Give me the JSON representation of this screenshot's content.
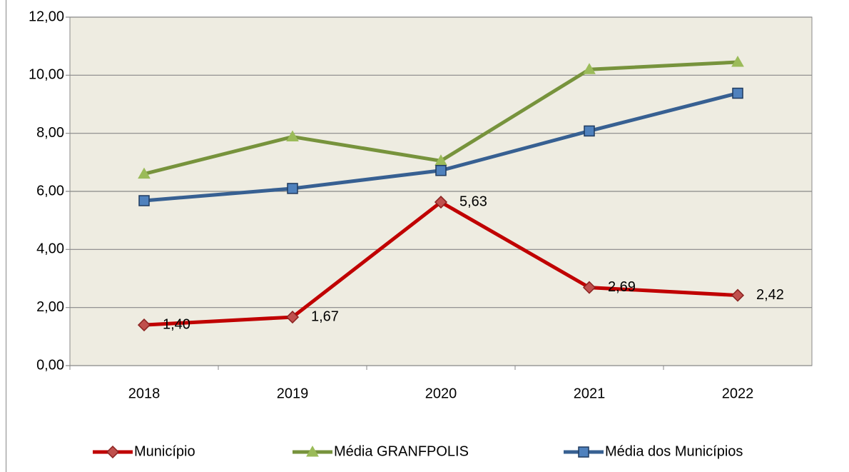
{
  "chart_data": {
    "type": "line",
    "categories": [
      "2018",
      "2019",
      "2020",
      "2021",
      "2022"
    ],
    "series": [
      {
        "name": "Município",
        "color": "#c00000",
        "marker": "diamond",
        "marker_color": "#c0504d",
        "values": [
          1.4,
          1.67,
          5.63,
          2.69,
          2.42
        ],
        "value_labels": [
          "1,40",
          "1,67",
          "5,63",
          "2,69",
          "2,42"
        ]
      },
      {
        "name": "Média GRANFPOLIS",
        "color": "#77933c",
        "marker": "triangle",
        "marker_color": "#9bbb59",
        "values": [
          6.6,
          7.88,
          7.05,
          10.2,
          10.45
        ]
      },
      {
        "name": "Média dos Municípios",
        "color": "#376092",
        "marker": "square",
        "marker_color": "#4f81bd",
        "values": [
          5.68,
          6.1,
          6.72,
          8.08,
          9.38
        ]
      }
    ],
    "ylim": [
      0,
      12
    ],
    "yticks": [
      {
        "value": 0,
        "label": "0,00"
      },
      {
        "value": 2,
        "label": "2,00"
      },
      {
        "value": 4,
        "label": "4,00"
      },
      {
        "value": 6,
        "label": "6,00"
      },
      {
        "value": 8,
        "label": "8,00"
      },
      {
        "value": 10,
        "label": "10,00"
      },
      {
        "value": 12,
        "label": "12,00"
      }
    ],
    "grid": true,
    "legend": "bottom",
    "plot_background": "#eeece1"
  }
}
